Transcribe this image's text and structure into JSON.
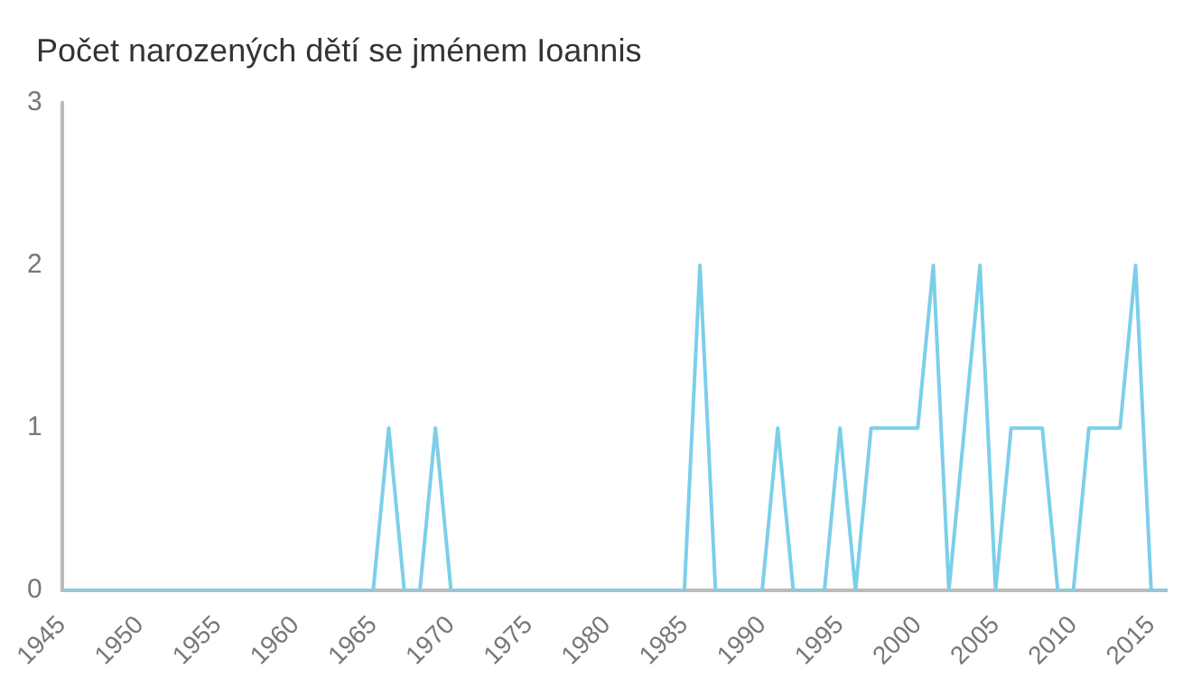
{
  "chart_data": {
    "type": "line",
    "title": "Počet narozených dětí se jménem Ioannis",
    "x": [
      1945,
      1946,
      1947,
      1948,
      1949,
      1950,
      1951,
      1952,
      1953,
      1954,
      1955,
      1956,
      1957,
      1958,
      1959,
      1960,
      1961,
      1962,
      1963,
      1964,
      1965,
      1966,
      1967,
      1968,
      1969,
      1970,
      1971,
      1972,
      1973,
      1974,
      1975,
      1976,
      1977,
      1978,
      1979,
      1980,
      1981,
      1982,
      1983,
      1984,
      1985,
      1986,
      1987,
      1988,
      1989,
      1990,
      1991,
      1992,
      1993,
      1994,
      1995,
      1996,
      1997,
      1998,
      1999,
      2000,
      2001,
      2002,
      2003,
      2004,
      2005,
      2006,
      2007,
      2008,
      2009,
      2010,
      2011,
      2012,
      2013,
      2014,
      2015,
      2016
    ],
    "series": [
      {
        "color": "#7ccfe9",
        "values": [
          0,
          0,
          0,
          0,
          0,
          0,
          0,
          0,
          0,
          0,
          0,
          0,
          0,
          0,
          0,
          0,
          0,
          0,
          0,
          0,
          0,
          1,
          0,
          0,
          1,
          0,
          0,
          0,
          0,
          0,
          0,
          0,
          0,
          0,
          0,
          0,
          0,
          0,
          0,
          0,
          0,
          2,
          0,
          0,
          0,
          0,
          1,
          0,
          0,
          0,
          1,
          0,
          1,
          1,
          1,
          1,
          2,
          0,
          1,
          2,
          0,
          1,
          1,
          1,
          0,
          0,
          1,
          1,
          1,
          2,
          0,
          0
        ]
      }
    ],
    "xlim": [
      1945,
      2016
    ],
    "xticks": [
      1945,
      1950,
      1955,
      1960,
      1965,
      1970,
      1975,
      1980,
      1985,
      1990,
      1995,
      2000,
      2005,
      2010,
      2015
    ],
    "ylim": [
      0,
      3
    ],
    "yticks": [
      0,
      1,
      2,
      3
    ],
    "grid": false,
    "legend": false,
    "marker": "none",
    "line_style": "solid"
  }
}
